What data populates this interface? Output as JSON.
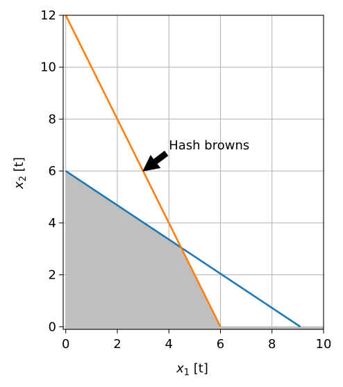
{
  "chart_data": {
    "type": "line",
    "xlabel": {
      "var": "x",
      "sub": "1",
      "unit": " [t]"
    },
    "ylabel": {
      "var": "x",
      "sub": "2",
      "unit": " [t]"
    },
    "xlim": [
      -0.1,
      10
    ],
    "ylim": [
      -0.1,
      12
    ],
    "xticks": [
      0,
      2,
      4,
      6,
      8,
      10
    ],
    "yticks": [
      0,
      2,
      4,
      6,
      8,
      10,
      12
    ],
    "grid": true,
    "series": [
      {
        "color": "#1f77b4",
        "x": [
          0,
          9.1
        ],
        "y": [
          6,
          0
        ]
      },
      {
        "color": "#ff7f0e",
        "x": [
          0,
          6
        ],
        "y": [
          12,
          0
        ]
      }
    ],
    "feasible_region": {
      "color": "#bfbfbf",
      "vertices": [
        [
          0,
          0
        ],
        [
          0,
          6
        ],
        [
          4.5,
          3
        ],
        [
          6,
          0
        ],
        [
          10,
          0
        ],
        [
          10,
          -0.1
        ],
        [
          0,
          -0.1
        ]
      ]
    },
    "annotation": {
      "text": "Hash browns",
      "xy": [
        3,
        6
      ],
      "xytext": [
        4,
        7
      ]
    }
  }
}
